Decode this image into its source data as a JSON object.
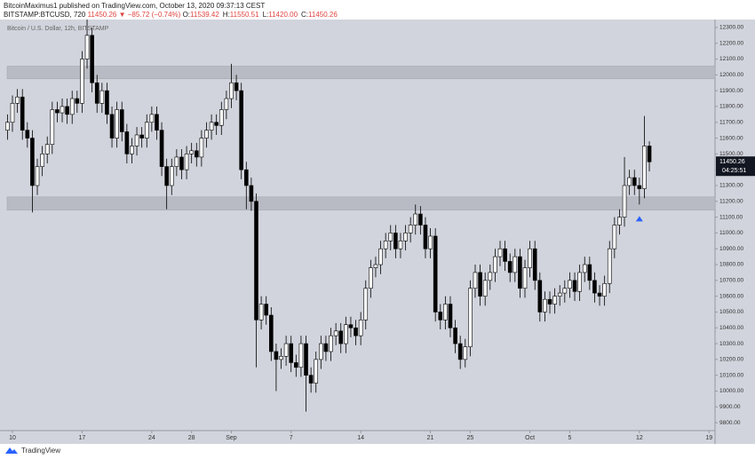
{
  "header": {
    "author_line": "BitcoinMaximus1 published on TradingView.com, October 13, 2020 09:37:13 CEST",
    "symbol": "BITSTAMP:BTCUSD, 720",
    "last": "11450.26",
    "change": "▼ −85.72 (−0.74%)",
    "ohlc": [
      {
        "label": "O:",
        "value": "11539.42"
      },
      {
        "label": "H:",
        "value": "11550.51"
      },
      {
        "label": "L:",
        "value": "11420.00"
      },
      {
        "label": "C:",
        "value": "11450.26"
      }
    ]
  },
  "footer": {
    "brand": "TradingView"
  },
  "chart_data": {
    "type": "candlestick",
    "legend": "Bitcoin / U.S. Dollar, 12h, BITSTAMP",
    "up_color": "#ffffff",
    "down_color": "#000000",
    "wick_color": "#000000",
    "xlim": [
      -1.25,
      70.6
    ],
    "ylim": [
      9750,
      12350
    ],
    "xticks": [
      {
        "value": 0,
        "label": "10"
      },
      {
        "value": 7,
        "label": "17"
      },
      {
        "value": 14,
        "label": "24"
      },
      {
        "value": 18,
        "label": "28"
      },
      {
        "value": 22,
        "label": "Sep"
      },
      {
        "value": 28,
        "label": "7"
      },
      {
        "value": 35,
        "label": "14"
      },
      {
        "value": 42,
        "label": "21"
      },
      {
        "value": 46,
        "label": "25"
      },
      {
        "value": 52,
        "label": "Oct"
      },
      {
        "value": 56,
        "label": "5"
      },
      {
        "value": 63,
        "label": "12"
      },
      {
        "value": 70,
        "label": "19"
      }
    ],
    "yticks": [
      {
        "value": 12300,
        "label": "12300.00"
      },
      {
        "value": 12200,
        "label": "12200.00"
      },
      {
        "value": 12100,
        "label": "12100.00"
      },
      {
        "value": 12000,
        "label": "12000.00"
      },
      {
        "value": 11900,
        "label": "11900.00"
      },
      {
        "value": 11800,
        "label": "11800.00"
      },
      {
        "value": 11700,
        "label": "11700.00"
      },
      {
        "value": 11600,
        "label": "11600.00"
      },
      {
        "value": 11500,
        "label": "11500.00"
      },
      {
        "value": 11400,
        "label": "11400.00"
      },
      {
        "value": 11300,
        "label": "11300.00"
      },
      {
        "value": 11200,
        "label": "11200.00"
      },
      {
        "value": 11100,
        "label": "11100.00"
      },
      {
        "value": 11000,
        "label": "11000.00"
      },
      {
        "value": 10900,
        "label": "10900.00"
      },
      {
        "value": 10800,
        "label": "10800.00"
      },
      {
        "value": 10700,
        "label": "10700.00"
      },
      {
        "value": 10600,
        "label": "10600.00"
      },
      {
        "value": 10500,
        "label": "10500.00"
      },
      {
        "value": 10400,
        "label": "10400.00"
      },
      {
        "value": 10300,
        "label": "10300.00"
      },
      {
        "value": 10200,
        "label": "10200.00"
      },
      {
        "value": 10100,
        "label": "10100.00"
      },
      {
        "value": 10000,
        "label": "10000.00"
      },
      {
        "value": 9900,
        "label": "9900.00"
      },
      {
        "value": 9800,
        "label": "9800.00"
      }
    ],
    "zones": [
      {
        "low": 11975,
        "high": 12055,
        "color": "#b8bbc3"
      },
      {
        "low": 11145,
        "high": 11228,
        "color": "#b8bbc3"
      }
    ],
    "marker": {
      "x": 63,
      "y": 11090,
      "color": "#2962ff"
    },
    "last_price": 11450.26,
    "countdown": "04:25:51",
    "x": [
      -0.5,
      0,
      0.5,
      1,
      1.5,
      2,
      2.5,
      3,
      3.5,
      4,
      4.5,
      5,
      5.5,
      6,
      6.5,
      7,
      7.5,
      8,
      8.5,
      9,
      9.5,
      10,
      10.5,
      11,
      11.5,
      12,
      12.5,
      13,
      13.5,
      14,
      14.5,
      15,
      15.5,
      16,
      16.5,
      17,
      17.5,
      18,
      18.5,
      19,
      19.5,
      20,
      20.5,
      21,
      21.5,
      22,
      22.5,
      23,
      23.5,
      24,
      24.5,
      25,
      25.5,
      26,
      26.5,
      27,
      27.5,
      28,
      28.5,
      29,
      29.5,
      30,
      30.5,
      31,
      31.5,
      32,
      32.5,
      33,
      33.5,
      34,
      34.5,
      35,
      35.5,
      36,
      36.5,
      37,
      37.5,
      38,
      38.5,
      39,
      39.5,
      40,
      40.5,
      41,
      41.5,
      42,
      42.5,
      43,
      43.5,
      44,
      44.5,
      45,
      45.5,
      46,
      46.5,
      47,
      47.5,
      48,
      48.5,
      49,
      49.5,
      50,
      50.5,
      51,
      51.5,
      52,
      52.5,
      53,
      53.5,
      54,
      54.5,
      55,
      55.5,
      56,
      56.5,
      57,
      57.5,
      58,
      58.5,
      59,
      59.5,
      60,
      60.5,
      61,
      61.5,
      62,
      62.5,
      63,
      63.5,
      64
    ],
    "open": [
      11650,
      11700,
      11820,
      11860,
      11650,
      11600,
      11300,
      11420,
      11500,
      11560,
      11780,
      11760,
      11800,
      11750,
      11850,
      11820,
      12100,
      12250,
      11950,
      11820,
      11900,
      11750,
      11600,
      11780,
      11640,
      11500,
      11550,
      11620,
      11600,
      11700,
      11750,
      11650,
      11420,
      11300,
      11420,
      11480,
      11400,
      11500,
      11520,
      11480,
      11600,
      11650,
      11700,
      11680,
      11780,
      11850,
      11950,
      11900,
      11400,
      11300,
      11200,
      10450,
      10550,
      10480,
      10250,
      10200,
      10220,
      10300,
      10180,
      10150,
      10300,
      10100,
      10050,
      10200,
      10300,
      10250,
      10350,
      10380,
      10300,
      10420,
      10400,
      10350,
      10450,
      10650,
      10780,
      10800,
      10900,
      10950,
      11000,
      10900,
      10950,
      11000,
      11050,
      11120,
      11050,
      10900,
      10980,
      10500,
      10450,
      10550,
      10400,
      10300,
      10200,
      10280,
      10650,
      10750,
      10600,
      10700,
      10750,
      10850,
      10900,
      10820,
      10750,
      10850,
      10650,
      10780,
      10900,
      10700,
      10500,
      10580,
      10550,
      10600,
      10620,
      10650,
      10700,
      10630,
      10750,
      10800,
      10700,
      10620,
      10600,
      10680,
      10900,
      11050,
      11100,
      11300,
      11350,
      11300,
      11280,
      11550
    ],
    "high": [
      11750,
      11870,
      11910,
      11910,
      11700,
      11650,
      11470,
      11550,
      11610,
      11830,
      11830,
      11850,
      11850,
      11900,
      11900,
      12150,
      12350,
      12300,
      12000,
      11950,
      11950,
      11800,
      11830,
      11830,
      11690,
      11600,
      11670,
      11670,
      11750,
      11800,
      11800,
      11700,
      11470,
      11470,
      11530,
      11530,
      11550,
      11570,
      11570,
      11650,
      11700,
      11750,
      11750,
      11830,
      11900,
      12070,
      12000,
      11950,
      11450,
      11350,
      11250,
      10600,
      10600,
      10530,
      10300,
      10270,
      10350,
      10350,
      10230,
      10350,
      10350,
      10150,
      10250,
      10350,
      10350,
      10400,
      10430,
      10430,
      10470,
      10470,
      10450,
      10500,
      10700,
      10830,
      10850,
      10950,
      11000,
      11050,
      11050,
      11000,
      11050,
      11100,
      11180,
      11170,
      11100,
      11030,
      11030,
      10550,
      10600,
      10600,
      10450,
      10350,
      10330,
      10700,
      10800,
      10800,
      10750,
      10800,
      10900,
      10950,
      10950,
      10870,
      10900,
      10900,
      10830,
      10950,
      10950,
      10750,
      10630,
      10630,
      10650,
      10670,
      10700,
      10750,
      10750,
      10800,
      10850,
      10850,
      10750,
      10670,
      10730,
      10950,
      11100,
      11150,
      11480,
      11400,
      11400,
      11350,
      11740,
      11580
    ],
    "low": [
      11590,
      11640,
      11760,
      11590,
      11540,
      11130,
      11240,
      11360,
      11440,
      11500,
      11700,
      11700,
      11690,
      11690,
      11760,
      11760,
      12040,
      11890,
      11760,
      11760,
      11690,
      11540,
      11540,
      11580,
      11440,
      11440,
      11490,
      11540,
      11540,
      11640,
      11590,
      11360,
      11150,
      11240,
      11360,
      11340,
      11340,
      11440,
      11420,
      11420,
      11540,
      11590,
      11620,
      11620,
      11720,
      11790,
      11840,
      11340,
      11150,
      11140,
      10150,
      10390,
      10420,
      10190,
      10000,
      10140,
      10160,
      10120,
      10090,
      10090,
      9870,
      9990,
      9990,
      10140,
      10190,
      10190,
      10290,
      10240,
      10240,
      10340,
      10290,
      10290,
      10390,
      10590,
      10720,
      10740,
      10840,
      10890,
      10840,
      10840,
      10890,
      10940,
      10990,
      10990,
      10840,
      10840,
      10440,
      10390,
      10390,
      10340,
      10240,
      10140,
      10150,
      10220,
      10590,
      10540,
      10540,
      10640,
      10690,
      10790,
      10760,
      10690,
      10690,
      10590,
      10590,
      10720,
      10640,
      10440,
      10440,
      10490,
      10490,
      10540,
      10560,
      10590,
      10570,
      10570,
      10690,
      10640,
      10560,
      10540,
      10540,
      10620,
      10840,
      10990,
      11040,
      11240,
      11240,
      11180,
      11220,
      11390
    ],
    "close": [
      11700,
      11820,
      11860,
      11650,
      11600,
      11300,
      11420,
      11500,
      11560,
      11780,
      11760,
      11800,
      11750,
      11850,
      11820,
      12100,
      12250,
      11950,
      11820,
      11900,
      11750,
      11600,
      11780,
      11640,
      11500,
      11550,
      11620,
      11600,
      11700,
      11750,
      11650,
      11420,
      11300,
      11420,
      11480,
      11400,
      11500,
      11520,
      11480,
      11600,
      11650,
      11700,
      11680,
      11780,
      11850,
      11950,
      11900,
      11400,
      11300,
      11200,
      10450,
      10550,
      10480,
      10250,
      10200,
      10220,
      10300,
      10180,
      10150,
      10300,
      10100,
      10050,
      10200,
      10300,
      10250,
      10350,
      10380,
      10300,
      10420,
      10400,
      10350,
      10450,
      10650,
      10780,
      10800,
      10900,
      10950,
      11000,
      10900,
      10950,
      11000,
      11050,
      11120,
      11050,
      10900,
      10980,
      10500,
      10450,
      10550,
      10400,
      10300,
      10200,
      10280,
      10650,
      10750,
      10600,
      10700,
      10750,
      10850,
      10900,
      10820,
      10750,
      10850,
      10650,
      10780,
      10900,
      10700,
      10500,
      10580,
      10550,
      10600,
      10620,
      10650,
      10700,
      10630,
      10750,
      10800,
      10700,
      10620,
      10600,
      10680,
      10900,
      11050,
      11100,
      11300,
      11350,
      11300,
      11280,
      11550,
      11450
    ]
  }
}
